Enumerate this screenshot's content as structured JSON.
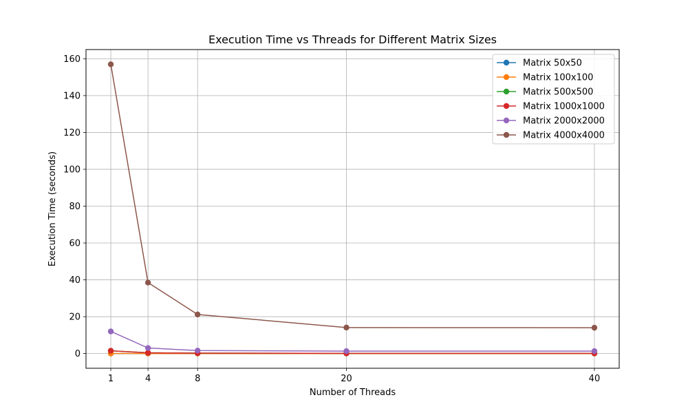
{
  "chart_data": {
    "type": "line",
    "title": "Execution Time vs Threads for Different Matrix Sizes",
    "xlabel": "Number of Threads",
    "ylabel": "Execution Time (seconds)",
    "x": [
      1,
      4,
      8,
      20,
      40
    ],
    "xticks": [
      1,
      4,
      8,
      20,
      40
    ],
    "xlim": [
      -1,
      42
    ],
    "yticks": [
      0,
      20,
      40,
      60,
      80,
      100,
      120,
      140,
      160
    ],
    "ylim": [
      -8,
      165
    ],
    "grid": true,
    "legend_position": "top-right",
    "series": [
      {
        "name": "Matrix 50x50",
        "color": "#1f77b4",
        "values": [
          0.001,
          0.001,
          0.001,
          0.002,
          0.003
        ]
      },
      {
        "name": "Matrix 100x100",
        "color": "#ff7f0e",
        "values": [
          0.01,
          0.005,
          0.005,
          0.005,
          0.006
        ]
      },
      {
        "name": "Matrix 500x500",
        "color": "#2ca02c",
        "values": [
          1.5,
          0.4,
          0.2,
          0.1,
          0.1
        ]
      },
      {
        "name": "Matrix 1000x1000",
        "color": "#d62728",
        "values": [
          1.5,
          0.4,
          0.2,
          0.1,
          0.1
        ]
      },
      {
        "name": "Matrix 2000x2000",
        "color": "#9467bd",
        "values": [
          12.0,
          3.0,
          1.6,
          1.3,
          1.3
        ]
      },
      {
        "name": "Matrix 4000x4000",
        "color": "#8c564b",
        "values": [
          157.0,
          38.5,
          21.2,
          14.1,
          14.0
        ]
      }
    ]
  }
}
